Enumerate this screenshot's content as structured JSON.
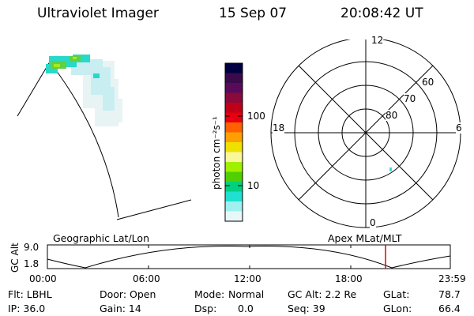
{
  "header": {
    "instrument": "Ultraviolet Imager",
    "date": "15 Sep 07",
    "time": "20:08:42 UT"
  },
  "colorbar": {
    "unit_label": "photon cm⁻²s⁻¹",
    "ticks": [
      "100",
      "10"
    ],
    "colors": [
      "#000040",
      "#3a0a4a",
      "#5a0a5a",
      "#8a0a3a",
      "#c00018",
      "#e80010",
      "#ff6000",
      "#ffa000",
      "#f0e000",
      "#f8f89a",
      "#a0f000",
      "#50d000",
      "#00d080",
      "#20e0d0",
      "#a0f0f0",
      "#e8f8f8"
    ]
  },
  "polar_plot": {
    "mlt_labels": {
      "top": "12",
      "left": "18",
      "right": "6",
      "bottom": "0"
    },
    "lat_labels": [
      "60",
      "70",
      "80"
    ]
  },
  "timeline": {
    "axis_label": "GC Alt",
    "y_ticks": [
      "9.0",
      "1.8"
    ],
    "left_title": "Geographic Lat/Lon",
    "right_title": "Apex MLat/MLT",
    "x_ticks": [
      "00:00",
      "06:00",
      "12:00",
      "18:00",
      "23:59"
    ],
    "marker_color": "#e00000"
  },
  "status": {
    "col1": [
      "Flt: LBHL",
      "IP: 36.0"
    ],
    "col2": [
      "Door: Open",
      "Gain: 14"
    ],
    "col3": [
      {
        "label": "Mode:",
        "value": "Normal"
      },
      {
        "label": "Dsp:",
        "value": "0.0"
      }
    ],
    "col4": [
      "GC Alt: 2.2 Re",
      "Seq: 39"
    ],
    "col5": [
      {
        "label": "GLat:",
        "value": "78.7"
      },
      {
        "label": "GLon:",
        "value": "66.4"
      }
    ]
  }
}
